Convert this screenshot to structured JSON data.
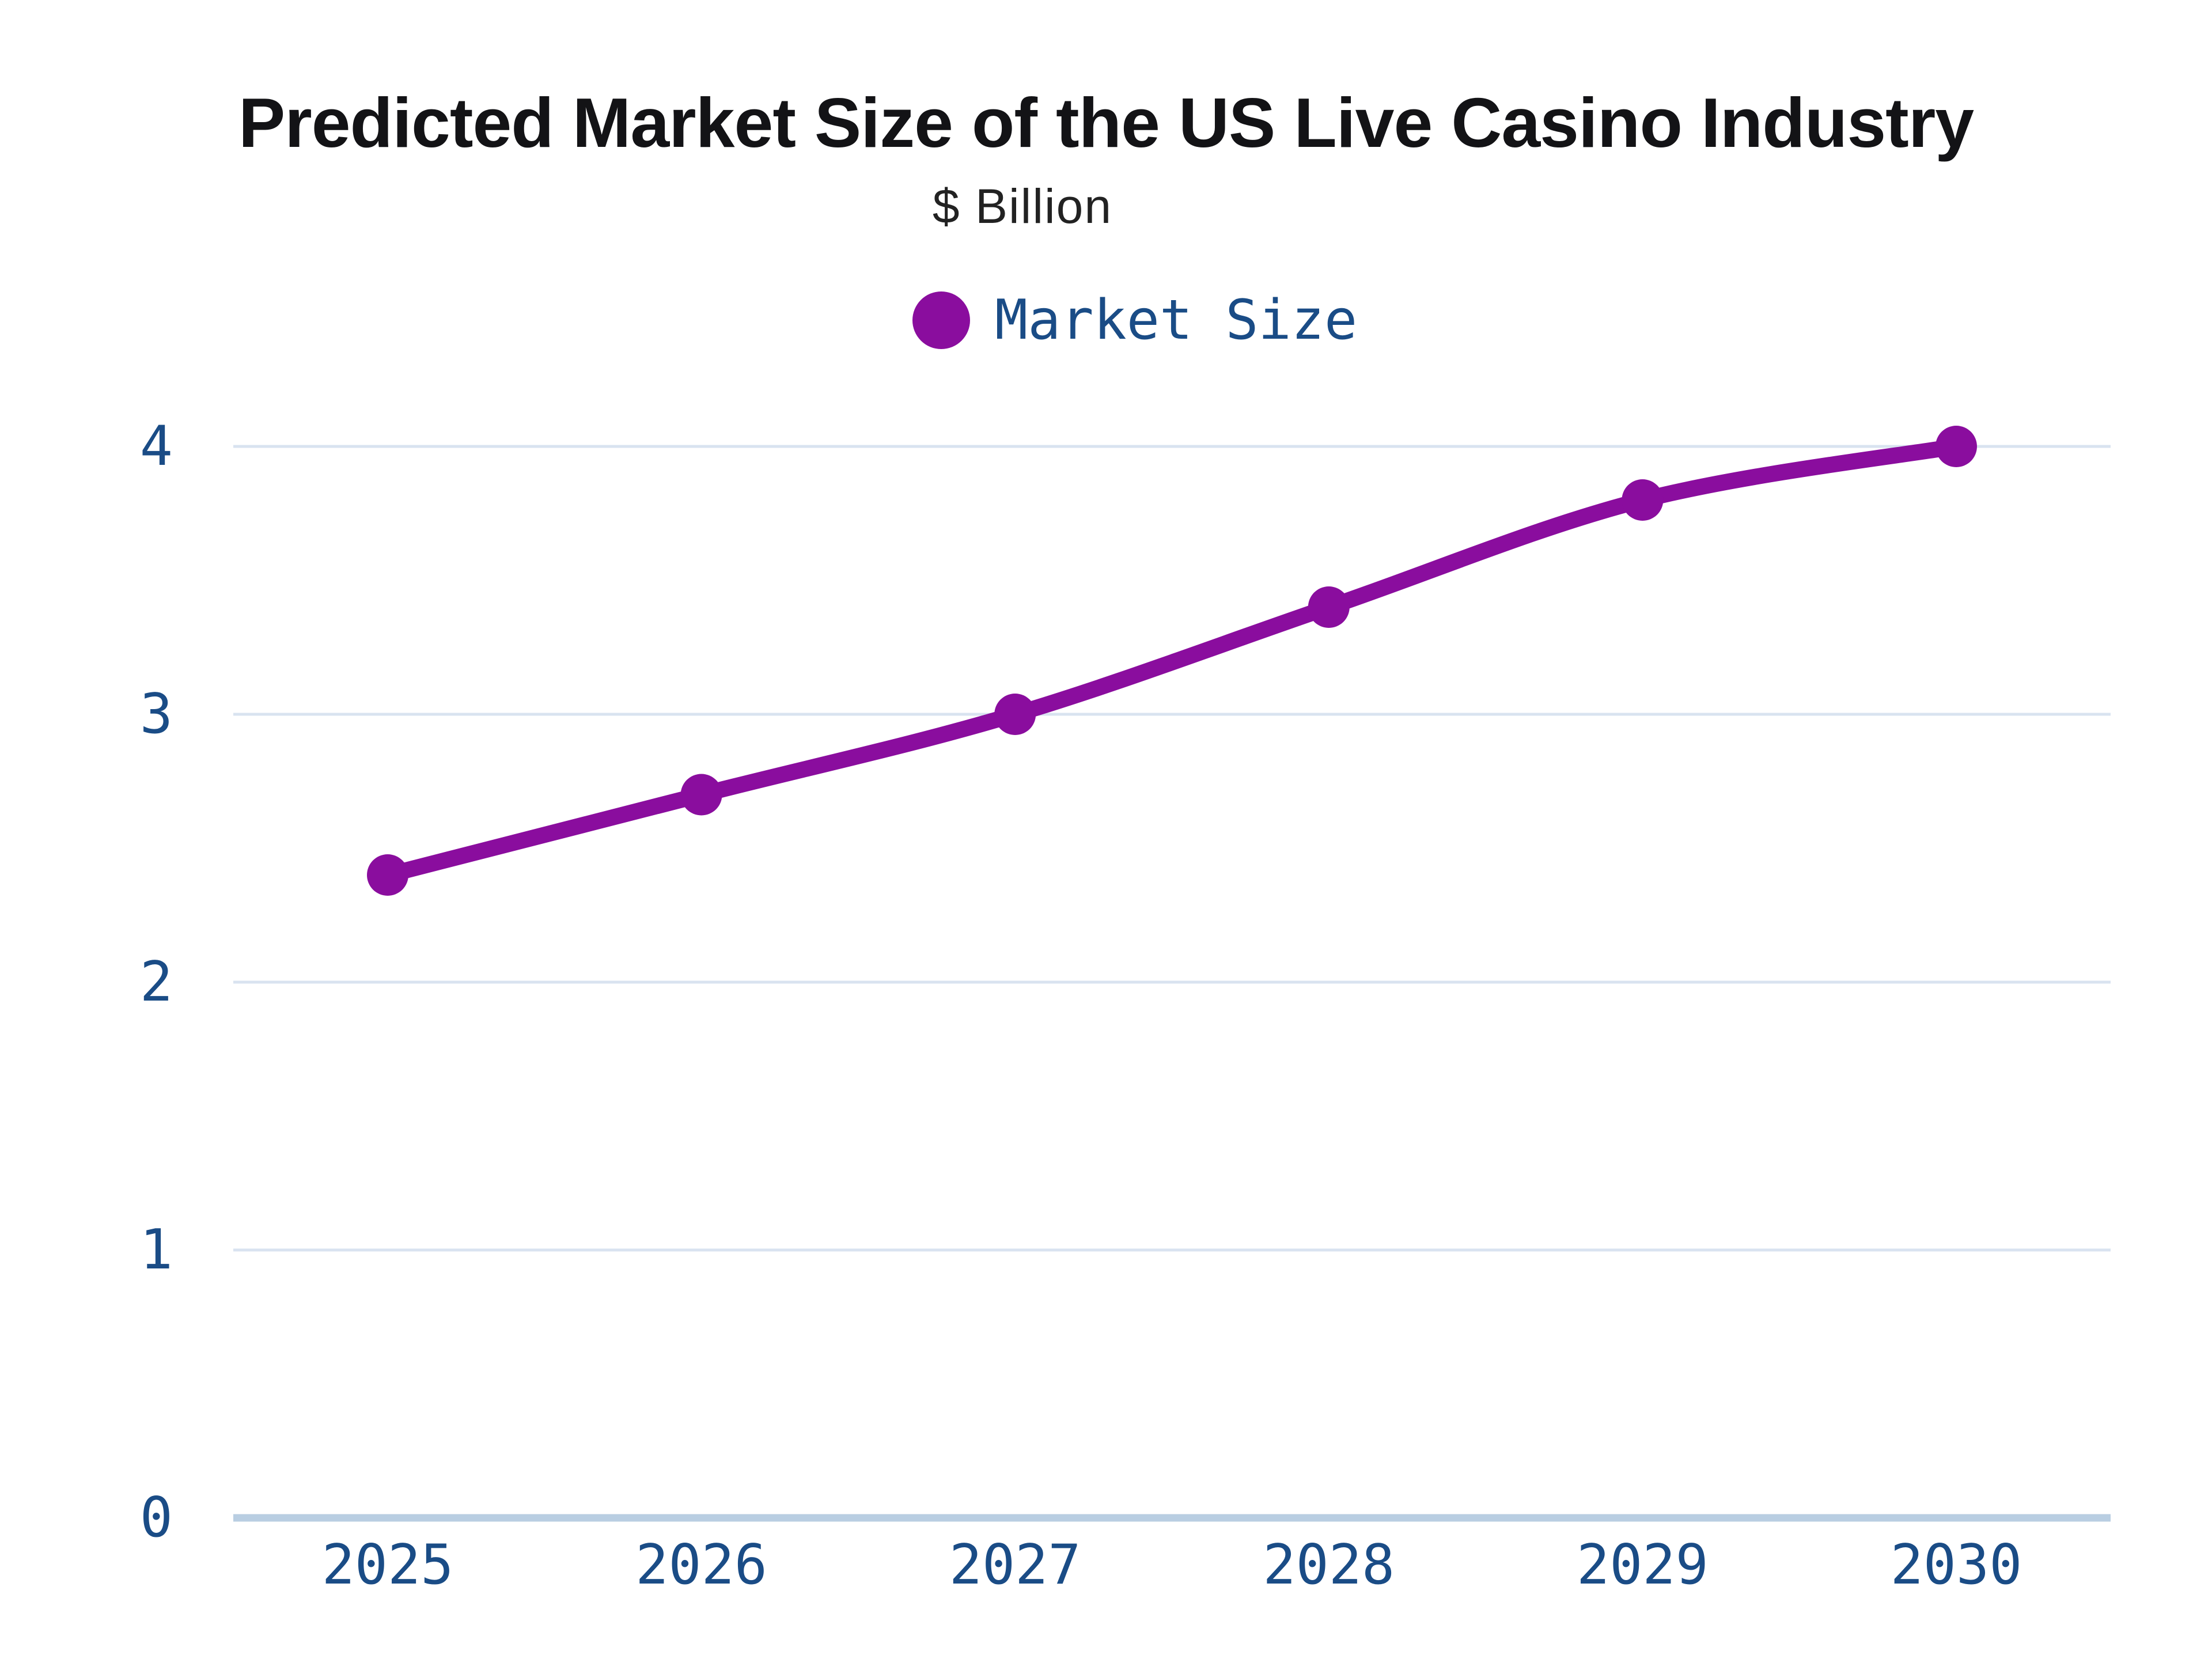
{
  "chart_data": {
    "type": "line",
    "title": "Predicted Market Size of the US Live Casino Industry",
    "subtitle": "$ Billion",
    "legend": [
      {
        "label": "Market Size",
        "color": "#8A0D9E"
      }
    ],
    "legend_position": "top",
    "categories": [
      "2025",
      "2026",
      "2027",
      "2028",
      "2029",
      "2030"
    ],
    "series": [
      {
        "name": "Market Size",
        "values": [
          2.4,
          2.7,
          3.0,
          3.4,
          3.8,
          4.0
        ]
      }
    ],
    "xlabel": "",
    "ylabel": "$ Billion",
    "ylim": [
      0,
      4
    ],
    "yticks": [
      0,
      1,
      2,
      3,
      4
    ],
    "grid": "horizontal-only"
  },
  "colors": {
    "line_purple": "#8A0D9E",
    "axis_text_navy": "#1A4C86",
    "gridline_light": "#D9E3F0",
    "baseline_steel": "#B9CEE2",
    "title_black": "#131316",
    "subtitle_gray": "#222222",
    "background": "#FFFFFF"
  }
}
